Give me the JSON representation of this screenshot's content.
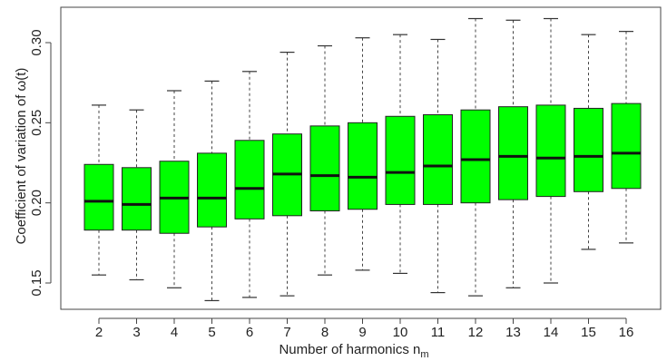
{
  "chart_data": {
    "type": "box",
    "xlabel": "Number of harmonics n",
    "xlabel_subscript": "m",
    "ylabel": "Coefficient of variation of ω(t)",
    "ylim": [
      0.13,
      0.32
    ],
    "yticks": [
      0.15,
      0.2,
      0.25,
      0.3
    ],
    "ytick_labels": [
      "0.15",
      "0.20",
      "0.25",
      "0.30"
    ],
    "box_color": "#00ff00",
    "categories": [
      "2",
      "3",
      "4",
      "5",
      "6",
      "7",
      "8",
      "9",
      "10",
      "11",
      "12",
      "13",
      "14",
      "15",
      "16"
    ],
    "boxes": [
      {
        "min": 0.155,
        "q1": 0.183,
        "median": 0.201,
        "q3": 0.224,
        "max": 0.261
      },
      {
        "min": 0.152,
        "q1": 0.183,
        "median": 0.199,
        "q3": 0.222,
        "max": 0.258
      },
      {
        "min": 0.147,
        "q1": 0.181,
        "median": 0.203,
        "q3": 0.226,
        "max": 0.27
      },
      {
        "min": 0.139,
        "q1": 0.185,
        "median": 0.203,
        "q3": 0.231,
        "max": 0.276
      },
      {
        "min": 0.141,
        "q1": 0.19,
        "median": 0.209,
        "q3": 0.239,
        "max": 0.282
      },
      {
        "min": 0.142,
        "q1": 0.192,
        "median": 0.218,
        "q3": 0.243,
        "max": 0.294
      },
      {
        "min": 0.155,
        "q1": 0.195,
        "median": 0.217,
        "q3": 0.248,
        "max": 0.298
      },
      {
        "min": 0.158,
        "q1": 0.196,
        "median": 0.216,
        "q3": 0.25,
        "max": 0.303
      },
      {
        "min": 0.156,
        "q1": 0.199,
        "median": 0.219,
        "q3": 0.254,
        "max": 0.305
      },
      {
        "min": 0.144,
        "q1": 0.199,
        "median": 0.223,
        "q3": 0.255,
        "max": 0.302
      },
      {
        "min": 0.142,
        "q1": 0.2,
        "median": 0.227,
        "q3": 0.258,
        "max": 0.315
      },
      {
        "min": 0.147,
        "q1": 0.202,
        "median": 0.229,
        "q3": 0.26,
        "max": 0.314
      },
      {
        "min": 0.15,
        "q1": 0.204,
        "median": 0.228,
        "q3": 0.261,
        "max": 0.315
      },
      {
        "min": 0.171,
        "q1": 0.207,
        "median": 0.229,
        "q3": 0.259,
        "max": 0.305
      },
      {
        "min": 0.175,
        "q1": 0.209,
        "median": 0.231,
        "q3": 0.262,
        "max": 0.307
      }
    ]
  }
}
